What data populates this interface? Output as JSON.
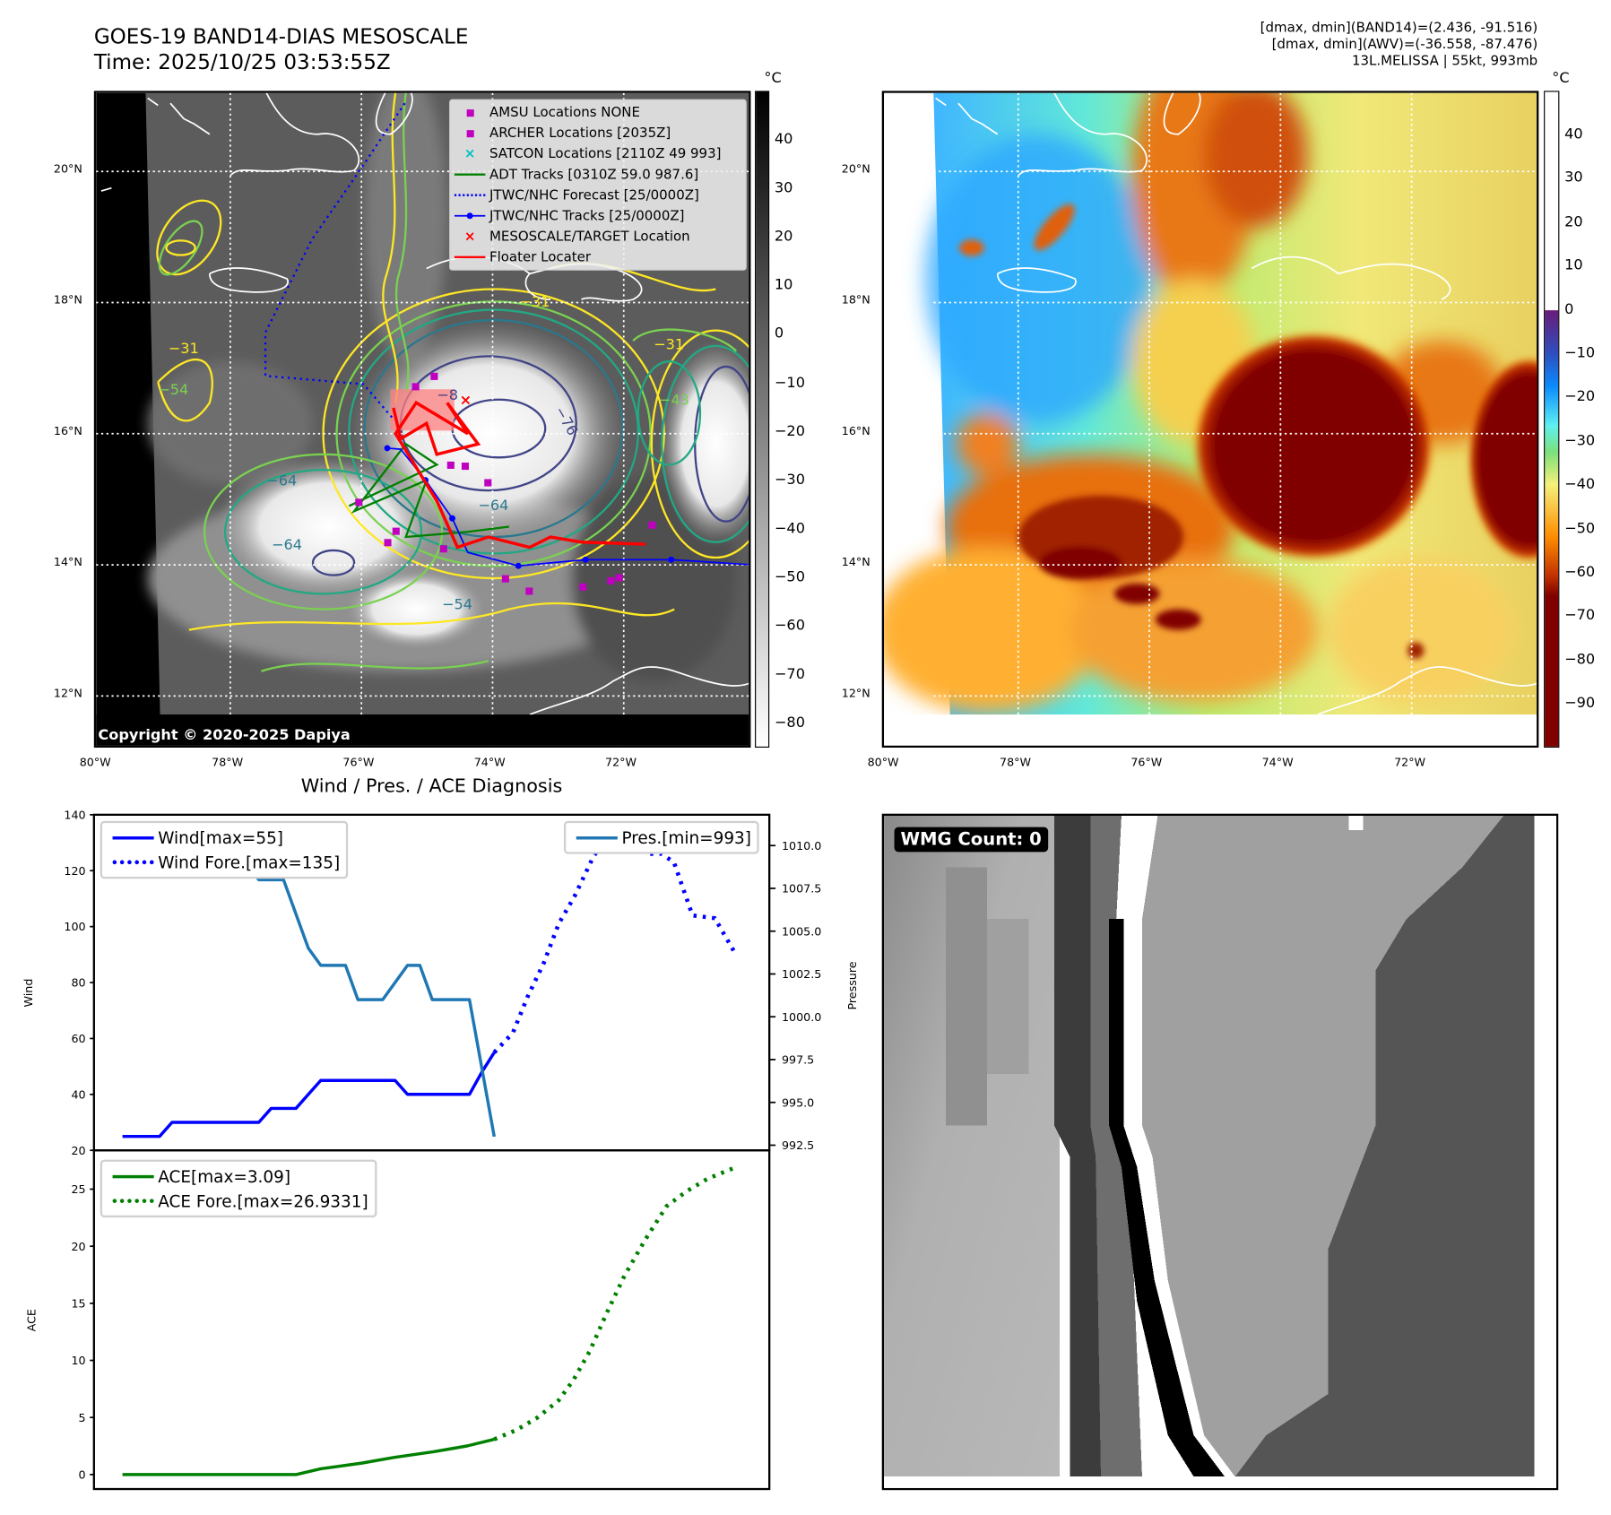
{
  "header": {
    "title": "GOES-19 BAND14-DIAS MESOSCALE",
    "time": "Time: 2025/10/25 03:53:55Z",
    "info_line1": "[dmax, dmin](BAND14)=(2.436, -91.516)",
    "info_line2": "[dmax, dmin](AWV)=(-36.558, -87.476)",
    "info_line3": "13L.MELISSA | 55kt, 993mb"
  },
  "map_left": {
    "lat_labels": [
      "20°N",
      "18°N",
      "16°N",
      "14°N",
      "12°N"
    ],
    "lon_labels": [
      "80°W",
      "78°W",
      "76°W",
      "74°W",
      "72°W"
    ],
    "colorbar_unit": "°C",
    "colorbar_ticks": [
      "40",
      "30",
      "20",
      "10",
      "0",
      "−10",
      "−20",
      "−30",
      "−40",
      "−50",
      "−60",
      "−70",
      "−80"
    ],
    "copyright": "Copyright © 2020-2025 Dapiya",
    "contour_labels": [
      "−31",
      "−31",
      "−31",
      "−54",
      "−64",
      "−76",
      "−8",
      "−64",
      "−54",
      "−43",
      "−64"
    ],
    "legend": [
      {
        "label": "AMSU Locations NONE",
        "icon": "magenta-square",
        "color": "#c000c0"
      },
      {
        "label": "ARCHER Locations [2035Z]",
        "icon": "magenta-square",
        "color": "#c000c0"
      },
      {
        "label": "SATCON Locations [2110Z 49 993]",
        "icon": "cyan-x",
        "color": "#00c0c0"
      },
      {
        "label": "ADT Tracks [0310Z 59.0 987.6]",
        "icon": "green-line",
        "color": "#008000"
      },
      {
        "label": "JTWC/NHC Forecast [25/0000Z]",
        "icon": "blue-dotted-line",
        "color": "#0000ff"
      },
      {
        "label": "JTWC/NHC Tracks [25/0000Z]",
        "icon": "blue-line-dot",
        "color": "#0000ff"
      },
      {
        "label": "MESOSCALE/TARGET Location",
        "icon": "red-x",
        "color": "#ff0000"
      },
      {
        "label": "Floater Locater",
        "icon": "red-line",
        "color": "#ff0000"
      }
    ]
  },
  "map_right": {
    "lat_labels": [
      "20°N",
      "18°N",
      "16°N",
      "14°N",
      "12°N"
    ],
    "lon_labels": [
      "80°W",
      "78°W",
      "76°W",
      "74°W",
      "72°W"
    ],
    "colorbar_unit": "°C",
    "colorbar_ticks": [
      "40",
      "30",
      "20",
      "10",
      "0",
      "−10",
      "−20",
      "−30",
      "−40",
      "−50",
      "−60",
      "−70",
      "−80",
      "−90"
    ]
  },
  "wmg_panel": {
    "label": "WMG Count: 0"
  },
  "chart_data": {
    "type": "line",
    "title": "Wind / Pres. / ACE Diagnosis",
    "xlim": [
      -2.3,
      52.2
    ],
    "panels": [
      {
        "ylabel": "Wind",
        "ylim": [
          20,
          140
        ],
        "yticks": [
          20,
          40,
          60,
          80,
          100,
          120,
          140
        ],
        "y2label": "Pressure",
        "y2lim": [
          992.2,
          1011.8
        ],
        "y2ticks": [
          "992.5",
          "995.0",
          "997.5",
          "1000.0",
          "1002.5",
          "1005.0",
          "1007.5",
          "1010.0"
        ],
        "legend_left": [
          "Wind[max=55]",
          "Wind Fore.[max=135]"
        ],
        "legend_right": [
          "Pres.[min=993]"
        ],
        "series": [
          {
            "name": "Wind",
            "axis": "left",
            "style": "solid",
            "color": "#0000ff",
            "x": [
              0,
              1,
              2,
              3,
              4,
              5,
              6,
              7,
              8,
              9,
              10,
              11,
              12,
              13,
              14,
              15,
              16,
              17,
              18,
              19,
              20,
              21,
              22,
              23,
              24,
              25,
              26,
              27,
              28,
              29,
              30
            ],
            "y": [
              25,
              25,
              25,
              25,
              30,
              30,
              30,
              30,
              30,
              30,
              30,
              30,
              35,
              35,
              35,
              40,
              45,
              45,
              45,
              45,
              45,
              45,
              45,
              40,
              40,
              40,
              40,
              40,
              40,
              48,
              55
            ]
          },
          {
            "name": "Wind Fore.",
            "axis": "left",
            "style": "dotted",
            "color": "#0000ff",
            "x": [
              30,
              31.5,
              32.7,
              34,
              35.2,
              36.5,
              38,
              39.6,
              41.3,
              42.5,
              43.5,
              44.5,
              46,
              47.8,
              49.5
            ],
            "y": [
              55,
              62,
              75,
              87,
              101,
              111,
              125,
              135,
              135,
              126,
              126,
              123,
              104,
              103,
              90
            ]
          },
          {
            "name": "Pres.",
            "axis": "right",
            "style": "solid",
            "color": "#1f77b4",
            "x": [
              0,
              1,
              2,
              3,
              4,
              5,
              6,
              7,
              8,
              9,
              10,
              11,
              12,
              13,
              14,
              15,
              16,
              17,
              18,
              19,
              20,
              21,
              22,
              23,
              24,
              25,
              26,
              27,
              28,
              29,
              30
            ],
            "y": [
              1011,
              1011,
              1011,
              1011,
              1011,
              1010,
              1010,
              1010,
              1009,
              1009,
              1009,
              1008,
              1008,
              1008,
              1006,
              1004,
              1003,
              1003,
              1003,
              1001,
              1001,
              1001,
              1002,
              1003,
              1003,
              1001,
              1001,
              1001,
              1001,
              997,
              993
            ]
          }
        ]
      },
      {
        "ylabel": "ACE",
        "ylim": [
          -1.27,
          28.4
        ],
        "yticks": [
          0,
          5,
          10,
          15,
          20,
          25
        ],
        "legend_left": [
          "ACE[max=3.09]",
          "ACE Fore.[max=26.9331]"
        ],
        "series": [
          {
            "name": "ACE",
            "style": "solid",
            "color": "#008000",
            "x": [
              0,
              14,
              16,
              19.3,
              21.9,
              25.1,
              27.8,
              30
            ],
            "y": [
              0,
              0,
              0.5,
              1.0,
              1.5,
              2.0,
              2.5,
              3.09
            ]
          },
          {
            "name": "ACE Fore.",
            "style": "dotted",
            "color": "#008000",
            "x": [
              30,
              31.8,
              33.5,
              35.2,
              36.4,
              37.7,
              39.1,
              40.5,
              42.2,
              43.9,
              45.5,
              47.2,
              49.5
            ],
            "y": [
              3.09,
              3.9,
              5,
              6.5,
              8.3,
              10.8,
              14.2,
              17.4,
              20.6,
              23.5,
              24.8,
              25.9,
              26.93
            ]
          }
        ]
      }
    ]
  }
}
